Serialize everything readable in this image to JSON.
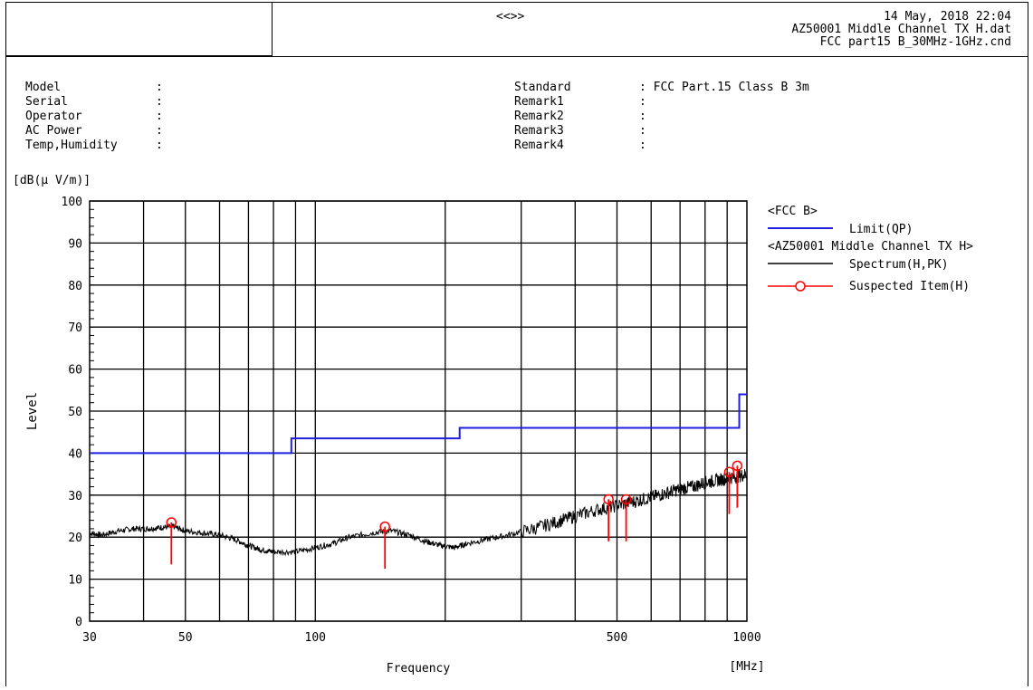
{
  "header": {
    "center_mark": "<<>>",
    "date": "14 May, 2018 22:04",
    "data_file": "AZ50001 Middle Channel TX H.dat",
    "condition_file": "FCC part15 B_30MHz-1GHz.cnd"
  },
  "info_left": [
    {
      "label": "Model",
      "sep": ":"
    },
    {
      "label": "Serial",
      "sep": ":"
    },
    {
      "label": "Operator",
      "sep": ":"
    },
    {
      "label": "AC Power",
      "sep": ":"
    },
    {
      "label": "Temp,Humidity",
      "sep": ":"
    }
  ],
  "info_right": [
    {
      "label": "Standard",
      "sep": ": FCC Part.15 Class B 3m"
    },
    {
      "label": "Remark1",
      "sep": ":"
    },
    {
      "label": "Remark2",
      "sep": ":"
    },
    {
      "label": "Remark3",
      "sep": ":"
    },
    {
      "label": "Remark4",
      "sep": ":"
    }
  ],
  "chart_data": {
    "type": "line",
    "ylabel": "Level",
    "yunit": "[dB(μ V/m)]",
    "xlabel": "Frequency",
    "xunit": "[MHz]",
    "x_scale": "log",
    "xlim": [
      30,
      1000
    ],
    "ylim": [
      0,
      100
    ],
    "x_tick_labels": [
      {
        "value": 30,
        "label": "30"
      },
      {
        "value": 50,
        "label": "50"
      },
      {
        "value": 100,
        "label": "100"
      },
      {
        "value": 500,
        "label": "500"
      },
      {
        "value": 1000,
        "label": "1000"
      }
    ],
    "y_ticks": [
      0,
      10,
      20,
      30,
      40,
      50,
      60,
      70,
      80,
      90,
      100
    ],
    "x_gridlines": [
      40,
      50,
      60,
      70,
      80,
      90,
      100,
      200,
      300,
      400,
      500,
      600,
      700,
      800,
      900
    ],
    "legend": {
      "position": "right",
      "groups": [
        {
          "title": "<FCC B>",
          "entries": [
            {
              "label": "Limit(QP)",
              "color": "#1f1fe0",
              "style": "line"
            }
          ]
        },
        {
          "title": "<AZ50001 Middle Channel TX H>",
          "entries": [
            {
              "label": "Spectrum(H,PK)",
              "color": "#000000",
              "style": "line"
            },
            {
              "label": "Suspected Item(H)",
              "color": "#ff0000",
              "style": "marker"
            }
          ]
        }
      ]
    },
    "limit_qp": [
      {
        "x": 30,
        "y": 40
      },
      {
        "x": 88,
        "y": 40
      },
      {
        "x": 88,
        "y": 43.5
      },
      {
        "x": 216,
        "y": 43.5
      },
      {
        "x": 216,
        "y": 46
      },
      {
        "x": 960,
        "y": 46
      },
      {
        "x": 960,
        "y": 54
      },
      {
        "x": 1000,
        "y": 54
      }
    ],
    "spectrum": [
      {
        "x": 30,
        "y": 21
      },
      {
        "x": 32,
        "y": 20.5
      },
      {
        "x": 35,
        "y": 21.5
      },
      {
        "x": 38,
        "y": 22
      },
      {
        "x": 41,
        "y": 22
      },
      {
        "x": 44,
        "y": 22.3
      },
      {
        "x": 47,
        "y": 22.5
      },
      {
        "x": 50,
        "y": 21.5
      },
      {
        "x": 55,
        "y": 21
      },
      {
        "x": 60,
        "y": 20.5
      },
      {
        "x": 65,
        "y": 19.5
      },
      {
        "x": 70,
        "y": 18
      },
      {
        "x": 75,
        "y": 17
      },
      {
        "x": 80,
        "y": 16.5
      },
      {
        "x": 90,
        "y": 16.5
      },
      {
        "x": 100,
        "y": 17.5
      },
      {
        "x": 110,
        "y": 18.5
      },
      {
        "x": 120,
        "y": 20
      },
      {
        "x": 135,
        "y": 21
      },
      {
        "x": 150,
        "y": 21.5
      },
      {
        "x": 165,
        "y": 20.5
      },
      {
        "x": 180,
        "y": 19
      },
      {
        "x": 195,
        "y": 18
      },
      {
        "x": 210,
        "y": 17.5
      },
      {
        "x": 225,
        "y": 18.5
      },
      {
        "x": 250,
        "y": 19.5
      },
      {
        "x": 280,
        "y": 20.5
      },
      {
        "x": 320,
        "y": 22
      },
      {
        "x": 360,
        "y": 23.5
      },
      {
        "x": 400,
        "y": 25
      },
      {
        "x": 450,
        "y": 26.5
      },
      {
        "x": 500,
        "y": 27.5
      },
      {
        "x": 550,
        "y": 28.5
      },
      {
        "x": 600,
        "y": 29.5
      },
      {
        "x": 650,
        "y": 30.5
      },
      {
        "x": 700,
        "y": 31.5
      },
      {
        "x": 750,
        "y": 32
      },
      {
        "x": 800,
        "y": 33
      },
      {
        "x": 850,
        "y": 33.5
      },
      {
        "x": 900,
        "y": 34
      },
      {
        "x": 950,
        "y": 34.5
      },
      {
        "x": 1000,
        "y": 35
      }
    ],
    "suspected_items": [
      {
        "x": 46.4,
        "y": 23.5,
        "y_low": 13.5
      },
      {
        "x": 145,
        "y": 22.5,
        "y_low": 12.5
      },
      {
        "x": 478,
        "y": 29,
        "y_low": 19
      },
      {
        "x": 525,
        "y": 29,
        "y_low": 19
      },
      {
        "x": 910,
        "y": 35.5,
        "y_low": 25.5
      },
      {
        "x": 950,
        "y": 37,
        "y_low": 27
      }
    ]
  }
}
